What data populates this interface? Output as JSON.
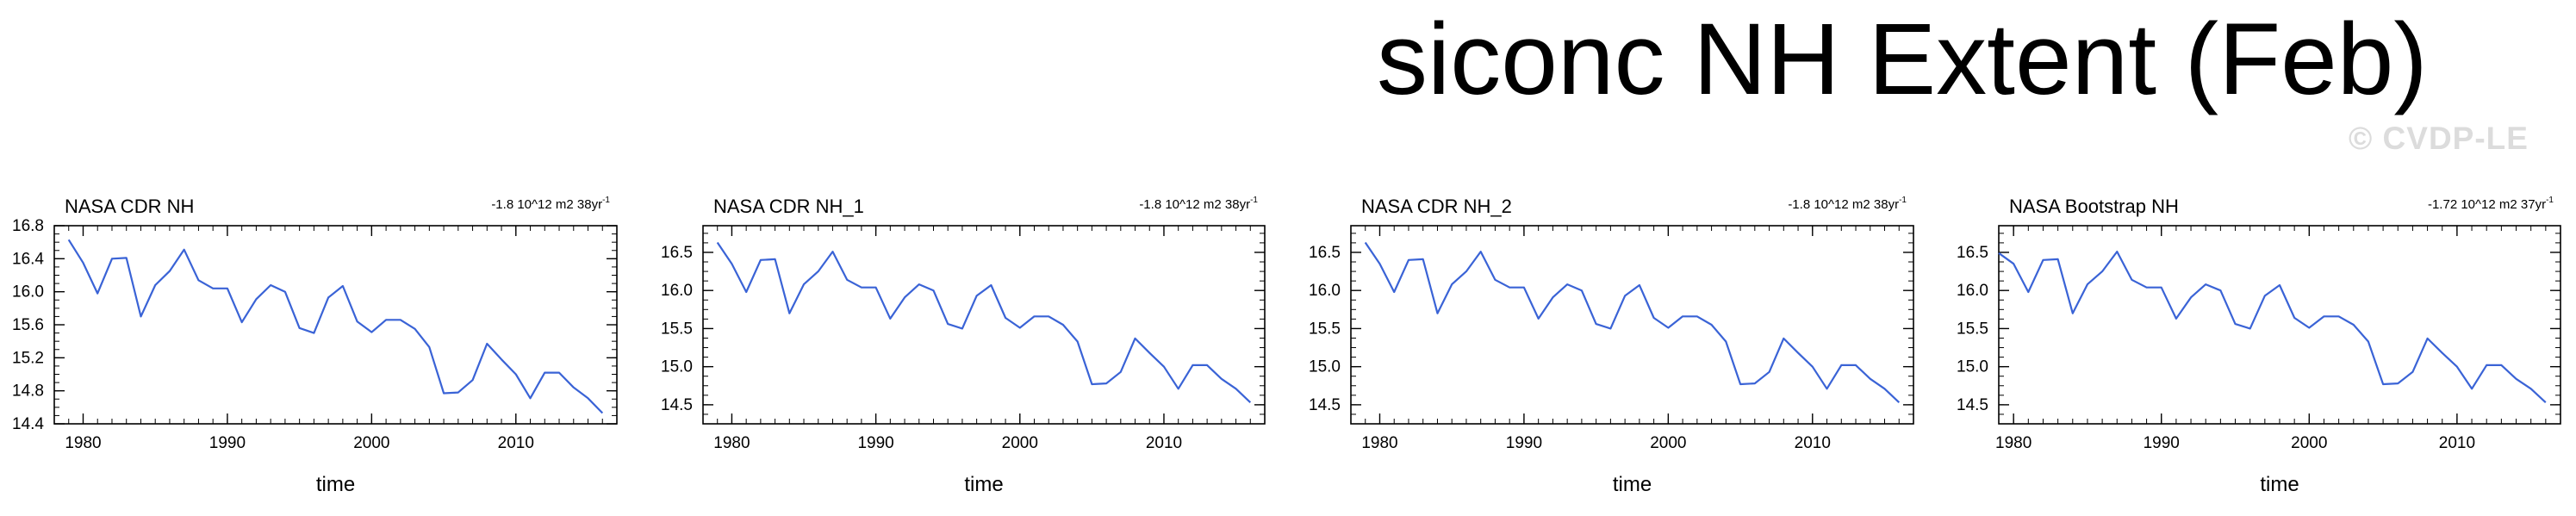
{
  "title": "siconc NH Extent (Feb)",
  "watermark": "© CVDP-LE",
  "line_color": "#3a63d6",
  "chart_data": [
    {
      "type": "line",
      "title": "NASA CDR NH",
      "trend": "-1.8 10^12 m2 38yr",
      "trend_exp": "-1",
      "xlabel": "time",
      "ylabel": "",
      "xlim": [
        1978,
        2017
      ],
      "ylim": [
        14.4,
        16.8
      ],
      "xticks": [
        1980,
        1990,
        2000,
        2010
      ],
      "yticks": [
        14.4,
        14.8,
        15.2,
        15.6,
        16.0,
        16.4,
        16.8
      ],
      "ytick_labels": [
        "14.4",
        "14.8",
        "15.2",
        "15.6",
        "16.0",
        "16.4",
        "16.8"
      ],
      "x": [
        1979,
        1980,
        1981,
        1982,
        1983,
        1984,
        1985,
        1986,
        1987,
        1988,
        1989,
        1990,
        1991,
        1992,
        1993,
        1994,
        1995,
        1996,
        1997,
        1998,
        1999,
        2000,
        2001,
        2002,
        2003,
        2004,
        2005,
        2006,
        2007,
        2008,
        2009,
        2010,
        2011,
        2012,
        2013,
        2014,
        2015,
        2016
      ],
      "values": [
        16.63,
        16.35,
        15.98,
        16.4,
        16.41,
        15.7,
        16.08,
        16.25,
        16.51,
        16.14,
        16.04,
        16.04,
        15.63,
        15.91,
        16.08,
        16.0,
        15.56,
        15.5,
        15.93,
        16.07,
        15.64,
        15.51,
        15.66,
        15.66,
        15.55,
        15.33,
        14.77,
        14.78,
        14.93,
        15.37,
        15.18,
        15.0,
        14.71,
        15.02,
        15.02,
        14.84,
        14.71,
        14.53
      ]
    },
    {
      "type": "line",
      "title": "NASA CDR NH_1",
      "trend": "-1.8 10^12 m2 38yr",
      "trend_exp": "-1",
      "xlabel": "time",
      "ylabel": "",
      "xlim": [
        1978,
        2017
      ],
      "ylim": [
        14.25,
        16.85
      ],
      "xticks": [
        1980,
        1990,
        2000,
        2010
      ],
      "yticks": [
        14.5,
        15.0,
        15.5,
        16.0,
        16.5
      ],
      "ytick_labels": [
        "14.5",
        "15.0",
        "15.5",
        "16.0",
        "16.5"
      ],
      "x": [
        1979,
        1980,
        1981,
        1982,
        1983,
        1984,
        1985,
        1986,
        1987,
        1988,
        1989,
        1990,
        1991,
        1992,
        1993,
        1994,
        1995,
        1996,
        1997,
        1998,
        1999,
        2000,
        2001,
        2002,
        2003,
        2004,
        2005,
        2006,
        2007,
        2008,
        2009,
        2010,
        2011,
        2012,
        2013,
        2014,
        2015,
        2016
      ],
      "values": [
        16.63,
        16.35,
        15.98,
        16.4,
        16.41,
        15.7,
        16.08,
        16.25,
        16.51,
        16.14,
        16.04,
        16.04,
        15.63,
        15.91,
        16.08,
        16.0,
        15.56,
        15.5,
        15.93,
        16.07,
        15.64,
        15.51,
        15.66,
        15.66,
        15.55,
        15.33,
        14.77,
        14.78,
        14.93,
        15.37,
        15.18,
        15.0,
        14.71,
        15.02,
        15.02,
        14.84,
        14.71,
        14.53
      ]
    },
    {
      "type": "line",
      "title": "NASA CDR NH_2",
      "trend": "-1.8 10^12 m2 38yr",
      "trend_exp": "-1",
      "xlabel": "time",
      "ylabel": "",
      "xlim": [
        1978,
        2017
      ],
      "ylim": [
        14.25,
        16.85
      ],
      "xticks": [
        1980,
        1990,
        2000,
        2010
      ],
      "yticks": [
        14.5,
        15.0,
        15.5,
        16.0,
        16.5
      ],
      "ytick_labels": [
        "14.5",
        "15.0",
        "15.5",
        "16.0",
        "16.5"
      ],
      "x": [
        1979,
        1980,
        1981,
        1982,
        1983,
        1984,
        1985,
        1986,
        1987,
        1988,
        1989,
        1990,
        1991,
        1992,
        1993,
        1994,
        1995,
        1996,
        1997,
        1998,
        1999,
        2000,
        2001,
        2002,
        2003,
        2004,
        2005,
        2006,
        2007,
        2008,
        2009,
        2010,
        2011,
        2012,
        2013,
        2014,
        2015,
        2016
      ],
      "values": [
        16.63,
        16.35,
        15.98,
        16.4,
        16.41,
        15.7,
        16.08,
        16.25,
        16.51,
        16.14,
        16.04,
        16.04,
        15.63,
        15.91,
        16.08,
        16.0,
        15.56,
        15.5,
        15.93,
        16.07,
        15.64,
        15.51,
        15.66,
        15.66,
        15.55,
        15.33,
        14.77,
        14.78,
        14.93,
        15.37,
        15.18,
        15.0,
        14.71,
        15.02,
        15.02,
        14.84,
        14.71,
        14.53
      ]
    },
    {
      "type": "line",
      "title": "NASA Bootstrap NH",
      "trend": "-1.72 10^12 m2 37yr",
      "trend_exp": "-1",
      "xlabel": "time",
      "ylabel": "",
      "xlim": [
        1979,
        2017
      ],
      "ylim": [
        14.25,
        16.85
      ],
      "xticks": [
        1980,
        1990,
        2000,
        2010
      ],
      "yticks": [
        14.5,
        15.0,
        15.5,
        16.0,
        16.5
      ],
      "ytick_labels": [
        "14.5",
        "15.0",
        "15.5",
        "16.0",
        "16.5"
      ],
      "x": [
        1979,
        1980,
        1981,
        1982,
        1983,
        1984,
        1985,
        1986,
        1987,
        1988,
        1989,
        1990,
        1991,
        1992,
        1993,
        1994,
        1995,
        1996,
        1997,
        1998,
        1999,
        2000,
        2001,
        2002,
        2003,
        2004,
        2005,
        2006,
        2007,
        2008,
        2009,
        2010,
        2011,
        2012,
        2013,
        2014,
        2015,
        2016
      ],
      "values": [
        16.49,
        16.35,
        15.98,
        16.4,
        16.41,
        15.7,
        16.08,
        16.25,
        16.51,
        16.14,
        16.04,
        16.04,
        15.63,
        15.91,
        16.08,
        16.0,
        15.56,
        15.5,
        15.93,
        16.07,
        15.64,
        15.51,
        15.66,
        15.66,
        15.55,
        15.33,
        14.77,
        14.78,
        14.93,
        15.37,
        15.18,
        15.0,
        14.71,
        15.02,
        15.02,
        14.84,
        14.71,
        14.53
      ]
    }
  ]
}
